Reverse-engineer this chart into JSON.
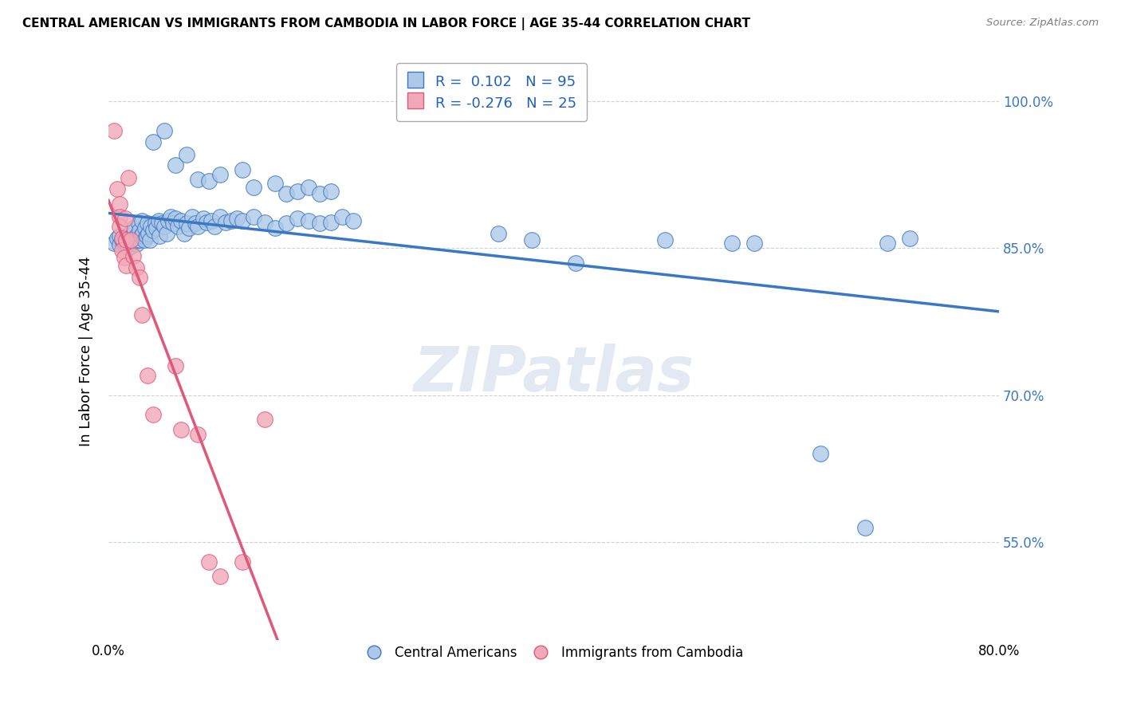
{
  "title": "CENTRAL AMERICAN VS IMMIGRANTS FROM CAMBODIA IN LABOR FORCE | AGE 35-44 CORRELATION CHART",
  "source": "Source: ZipAtlas.com",
  "ylabel": "In Labor Force | Age 35-44",
  "ytick_labels": [
    "100.0%",
    "85.0%",
    "70.0%",
    "55.0%"
  ],
  "ytick_values": [
    1.0,
    0.85,
    0.7,
    0.55
  ],
  "xlim": [
    0.0,
    0.8
  ],
  "ylim": [
    0.45,
    1.04
  ],
  "blue_color": "#aec8e8",
  "pink_color": "#f2a8b8",
  "blue_line_color": "#3a78c4",
  "pink_line_color": "#e05878",
  "dashed_line_color": "#d0b8c8",
  "watermark": "ZIPatlas",
  "legend_text_color": "#2060c0",
  "blue_scatter": [
    [
      0.005,
      0.855
    ],
    [
      0.008,
      0.86
    ],
    [
      0.01,
      0.862
    ],
    [
      0.01,
      0.853
    ],
    [
      0.012,
      0.858
    ],
    [
      0.013,
      0.858
    ],
    [
      0.014,
      0.856
    ],
    [
      0.015,
      0.86
    ],
    [
      0.015,
      0.852
    ],
    [
      0.016,
      0.855
    ],
    [
      0.017,
      0.862
    ],
    [
      0.018,
      0.857
    ],
    [
      0.018,
      0.851
    ],
    [
      0.019,
      0.865
    ],
    [
      0.02,
      0.858
    ],
    [
      0.02,
      0.852
    ],
    [
      0.021,
      0.858
    ],
    [
      0.022,
      0.856
    ],
    [
      0.023,
      0.87
    ],
    [
      0.024,
      0.86
    ],
    [
      0.025,
      0.862
    ],
    [
      0.025,
      0.854
    ],
    [
      0.026,
      0.858
    ],
    [
      0.027,
      0.875
    ],
    [
      0.028,
      0.868
    ],
    [
      0.028,
      0.858
    ],
    [
      0.029,
      0.862
    ],
    [
      0.03,
      0.878
    ],
    [
      0.031,
      0.865
    ],
    [
      0.032,
      0.858
    ],
    [
      0.033,
      0.87
    ],
    [
      0.034,
      0.862
    ],
    [
      0.035,
      0.875
    ],
    [
      0.036,
      0.865
    ],
    [
      0.037,
      0.858
    ],
    [
      0.038,
      0.872
    ],
    [
      0.04,
      0.868
    ],
    [
      0.042,
      0.875
    ],
    [
      0.043,
      0.87
    ],
    [
      0.045,
      0.878
    ],
    [
      0.046,
      0.862
    ],
    [
      0.048,
      0.875
    ],
    [
      0.05,
      0.872
    ],
    [
      0.052,
      0.865
    ],
    [
      0.054,
      0.878
    ],
    [
      0.056,
      0.882
    ],
    [
      0.058,
      0.875
    ],
    [
      0.06,
      0.88
    ],
    [
      0.062,
      0.872
    ],
    [
      0.065,
      0.878
    ],
    [
      0.068,
      0.865
    ],
    [
      0.07,
      0.875
    ],
    [
      0.072,
      0.87
    ],
    [
      0.075,
      0.882
    ],
    [
      0.078,
      0.875
    ],
    [
      0.08,
      0.872
    ],
    [
      0.085,
      0.88
    ],
    [
      0.088,
      0.876
    ],
    [
      0.092,
      0.878
    ],
    [
      0.095,
      0.872
    ],
    [
      0.1,
      0.882
    ],
    [
      0.105,
      0.876
    ],
    [
      0.11,
      0.878
    ],
    [
      0.115,
      0.88
    ],
    [
      0.12,
      0.878
    ],
    [
      0.13,
      0.882
    ],
    [
      0.14,
      0.876
    ],
    [
      0.15,
      0.87
    ],
    [
      0.16,
      0.875
    ],
    [
      0.17,
      0.88
    ],
    [
      0.18,
      0.878
    ],
    [
      0.19,
      0.875
    ],
    [
      0.2,
      0.876
    ],
    [
      0.21,
      0.882
    ],
    [
      0.22,
      0.878
    ],
    [
      0.04,
      0.958
    ],
    [
      0.05,
      0.97
    ],
    [
      0.06,
      0.935
    ],
    [
      0.07,
      0.945
    ],
    [
      0.08,
      0.92
    ],
    [
      0.09,
      0.918
    ],
    [
      0.1,
      0.925
    ],
    [
      0.12,
      0.93
    ],
    [
      0.13,
      0.912
    ],
    [
      0.15,
      0.916
    ],
    [
      0.16,
      0.905
    ],
    [
      0.17,
      0.908
    ],
    [
      0.18,
      0.912
    ],
    [
      0.19,
      0.905
    ],
    [
      0.2,
      0.908
    ],
    [
      0.35,
      0.865
    ],
    [
      0.38,
      0.858
    ],
    [
      0.42,
      0.835
    ],
    [
      0.5,
      0.858
    ],
    [
      0.56,
      0.855
    ],
    [
      0.58,
      0.855
    ],
    [
      0.64,
      0.64
    ],
    [
      0.68,
      0.565
    ],
    [
      0.7,
      0.855
    ],
    [
      0.72,
      0.86
    ]
  ],
  "pink_scatter": [
    [
      0.005,
      0.97
    ],
    [
      0.008,
      0.91
    ],
    [
      0.01,
      0.895
    ],
    [
      0.01,
      0.882
    ],
    [
      0.01,
      0.872
    ],
    [
      0.012,
      0.86
    ],
    [
      0.012,
      0.848
    ],
    [
      0.014,
      0.84
    ],
    [
      0.015,
      0.88
    ],
    [
      0.016,
      0.858
    ],
    [
      0.016,
      0.832
    ],
    [
      0.018,
      0.922
    ],
    [
      0.02,
      0.858
    ],
    [
      0.022,
      0.842
    ],
    [
      0.025,
      0.83
    ],
    [
      0.028,
      0.82
    ],
    [
      0.03,
      0.782
    ],
    [
      0.035,
      0.72
    ],
    [
      0.04,
      0.68
    ],
    [
      0.06,
      0.73
    ],
    [
      0.065,
      0.665
    ],
    [
      0.08,
      0.66
    ],
    [
      0.09,
      0.53
    ],
    [
      0.1,
      0.515
    ],
    [
      0.12,
      0.53
    ],
    [
      0.14,
      0.675
    ]
  ]
}
